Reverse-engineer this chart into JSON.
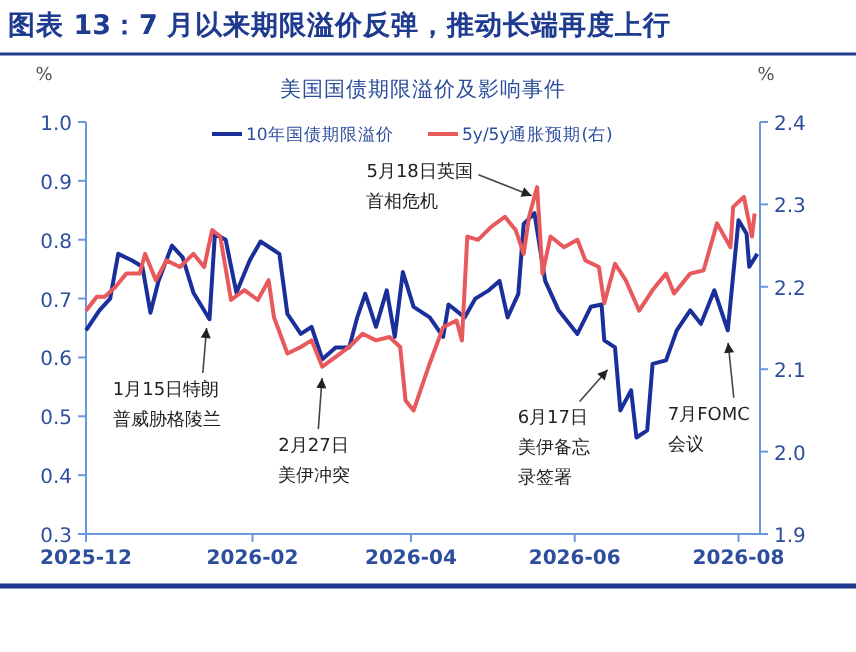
{
  "chart_data": {
    "type": "line",
    "title": "图表 13：7 月以来期限溢价反弹，推动长端再度上行",
    "subtitle": "美国国债期限溢价及影响事件",
    "ylabel": "%",
    "y2label": "%",
    "xlim": [
      "2025-12-01",
      "2026-08-09"
    ],
    "xticks": [
      {
        "value": "2025-12-01",
        "label": "2025-12"
      },
      {
        "value": "2026-02-01",
        "label": "2026-02"
      },
      {
        "value": "2026-04-01",
        "label": "2026-04"
      },
      {
        "value": "2026-06-01",
        "label": "2026-06"
      },
      {
        "value": "2026-08-01",
        "label": "2026-08"
      }
    ],
    "ylim": [
      0.3,
      1.0
    ],
    "yticks": [
      0.3,
      0.4,
      0.5,
      0.6,
      0.7,
      0.8,
      0.9,
      {
        "value": 1,
        "label": "1.0"
      }
    ],
    "y2lim": [
      1.9,
      2.4
    ],
    "y2ticks": [
      1.9,
      {
        "value": 2,
        "label": "2.0"
      },
      2.1,
      2.2,
      2.3,
      2.4
    ],
    "legend": "top",
    "grid": false,
    "line_style": "solid",
    "series": [
      {
        "name": "10年国债期限溢价",
        "color": "#1a2f9a",
        "x": [
          "2025-12-01",
          "2025-12-06",
          "2025-12-10",
          "2025-12-13",
          "2025-12-18",
          "2025-12-22",
          "2025-12-25",
          "2025-12-28",
          "2026-01-02",
          "2026-01-06",
          "2026-01-10",
          "2026-01-16",
          "2026-01-18",
          "2026-01-22",
          "2026-01-26",
          "2026-01-31",
          "2026-02-04",
          "2026-02-08",
          "2026-02-11",
          "2026-02-14",
          "2026-02-19",
          "2026-02-23",
          "2026-02-27",
          "2026-03-04",
          "2026-03-09",
          "2026-03-12",
          "2026-03-15",
          "2026-03-19",
          "2026-03-23",
          "2026-03-26",
          "2026-03-29",
          "2026-04-02",
          "2026-04-08",
          "2026-04-13",
          "2026-04-15",
          "2026-04-21",
          "2026-04-25",
          "2026-04-30",
          "2026-05-04",
          "2026-05-07",
          "2026-05-11",
          "2026-05-13",
          "2026-05-17",
          "2026-05-21",
          "2026-05-26",
          "2026-06-02",
          "2026-06-07",
          "2026-06-11",
          "2026-06-12",
          "2026-06-16",
          "2026-06-18",
          "2026-06-22",
          "2026-06-24",
          "2026-06-28",
          "2026-06-30",
          "2026-07-05",
          "2026-07-09",
          "2026-07-14",
          "2026-07-18",
          "2026-07-23",
          "2026-07-28",
          "2026-08-01",
          "2026-08-04",
          "2026-08-05",
          "2026-08-08"
        ],
        "values": [
          0.646,
          0.68,
          0.7,
          0.776,
          0.765,
          0.754,
          0.676,
          0.73,
          0.79,
          0.77,
          0.71,
          0.665,
          0.81,
          0.8,
          0.71,
          0.765,
          0.797,
          0.785,
          0.776,
          0.674,
          0.64,
          0.652,
          0.597,
          0.617,
          0.617,
          0.668,
          0.708,
          0.652,
          0.714,
          0.635,
          0.745,
          0.686,
          0.668,
          0.635,
          0.69,
          0.668,
          0.7,
          0.714,
          0.73,
          0.668,
          0.708,
          0.827,
          0.845,
          0.73,
          0.68,
          0.64,
          0.686,
          0.69,
          0.629,
          0.617,
          0.51,
          0.544,
          0.464,
          0.476,
          0.589,
          0.595,
          0.646,
          0.68,
          0.657,
          0.714,
          0.646,
          0.833,
          0.81,
          0.754,
          0.776
        ]
      },
      {
        "name": "5y/5y通胀预期(右)",
        "color": "#e8595c",
        "axis": "y2",
        "x": [
          "2025-12-01",
          "2025-12-05",
          "2025-12-08",
          "2025-12-12",
          "2025-12-16",
          "2025-12-21",
          "2025-12-23",
          "2025-12-27",
          "2025-12-31",
          "2026-01-05",
          "2026-01-10",
          "2026-01-14",
          "2026-01-17",
          "2026-01-20",
          "2026-01-24",
          "2026-01-29",
          "2026-02-03",
          "2026-02-07",
          "2026-02-09",
          "2026-02-14",
          "2026-02-19",
          "2026-02-23",
          "2026-02-27",
          "2026-03-04",
          "2026-03-09",
          "2026-03-14",
          "2026-03-19",
          "2026-03-24",
          "2026-03-28",
          "2026-03-30",
          "2026-04-02",
          "2026-04-08",
          "2026-04-13",
          "2026-04-18",
          "2026-04-20",
          "2026-04-22",
          "2026-04-26",
          "2026-05-01",
          "2026-05-06",
          "2026-05-10",
          "2026-05-13",
          "2026-05-15",
          "2026-05-18",
          "2026-05-20",
          "2026-05-23",
          "2026-05-28",
          "2026-06-02",
          "2026-06-05",
          "2026-06-10",
          "2026-06-12",
          "2026-06-16",
          "2026-06-20",
          "2026-06-25",
          "2026-06-30",
          "2026-07-05",
          "2026-07-08",
          "2026-07-14",
          "2026-07-19",
          "2026-07-24",
          "2026-07-29",
          "2026-07-30",
          "2026-08-03",
          "2026-08-06",
          "2026-08-07"
        ],
        "values": [
          2.171,
          2.188,
          2.188,
          2.2,
          2.216,
          2.216,
          2.24,
          2.208,
          2.232,
          2.224,
          2.24,
          2.224,
          2.269,
          2.261,
          2.184,
          2.196,
          2.184,
          2.208,
          2.163,
          2.119,
          2.127,
          2.135,
          2.103,
          2.115,
          2.127,
          2.143,
          2.135,
          2.139,
          2.127,
          2.062,
          2.05,
          2.107,
          2.151,
          2.159,
          2.135,
          2.261,
          2.257,
          2.273,
          2.285,
          2.269,
          2.24,
          2.285,
          2.321,
          2.216,
          2.261,
          2.248,
          2.257,
          2.232,
          2.224,
          2.18,
          2.228,
          2.208,
          2.171,
          2.196,
          2.216,
          2.192,
          2.216,
          2.22,
          2.277,
          2.248,
          2.297,
          2.309,
          2.261,
          2.289
        ]
      }
    ],
    "annotations": [
      {
        "text": "1月15日特朗普威胁格陵兰",
        "x": "2026-01-15",
        "y": 0.655
      },
      {
        "text": "2月27日美伊冲突",
        "x": "2026-02-27",
        "y": 0.57
      },
      {
        "text": "5月18日英国首相危机",
        "x": "2026-05-17",
        "y": 0.873
      },
      {
        "text": "6月17日美伊备忘录签署",
        "x": "2026-06-14",
        "y": 0.583
      },
      {
        "text": "7月FOMC会议",
        "x": "2026-07-28",
        "y": 0.63
      }
    ]
  }
}
